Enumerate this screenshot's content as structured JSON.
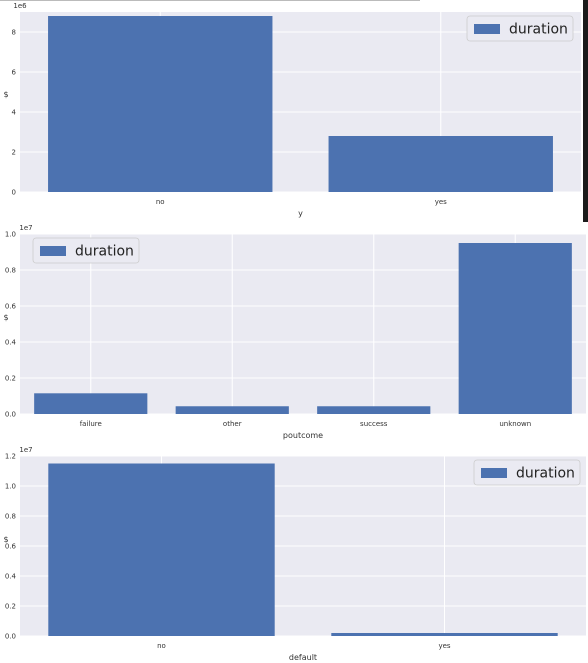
{
  "colors": {
    "bar": "#4c72b0",
    "plot_bg": "#eaeaf2",
    "grid": "#ffffff",
    "edge_bar": "#1b1b1b"
  },
  "chart_data": [
    {
      "type": "bar",
      "categories": [
        "no",
        "yes"
      ],
      "series": [
        {
          "name": "duration",
          "values": [
            8800000,
            2800000
          ]
        }
      ],
      "xlabel": "y",
      "ylabel": "$",
      "ylim": [
        0,
        9000000
      ],
      "yticks": [
        0,
        2,
        4,
        6,
        8
      ],
      "offset_text": "1e6",
      "grid": true,
      "legend": "top-right"
    },
    {
      "type": "bar",
      "categories": [
        "failure",
        "other",
        "success",
        "unknown"
      ],
      "series": [
        {
          "name": "duration",
          "values": [
            1150000,
            430000,
            430000,
            9500000
          ]
        }
      ],
      "xlabel": "poutcome",
      "ylabel": "$",
      "ylim": [
        0,
        10000000
      ],
      "yticks": [
        "0.0",
        "0.2",
        "0.4",
        "0.6",
        "0.8",
        "1.0"
      ],
      "offset_text": "1e7",
      "grid": true,
      "legend": "top-left"
    },
    {
      "type": "bar",
      "categories": [
        "no",
        "yes"
      ],
      "series": [
        {
          "name": "duration",
          "values": [
            11500000,
            200000
          ]
        }
      ],
      "xlabel": "default",
      "ylabel": "$",
      "ylim": [
        0,
        12000000
      ],
      "yticks": [
        "0.0",
        "0.2",
        "0.4",
        "0.6",
        "0.8",
        "1.0",
        "1.2"
      ],
      "offset_text": "1e7",
      "grid": true,
      "legend": "top-right"
    }
  ]
}
